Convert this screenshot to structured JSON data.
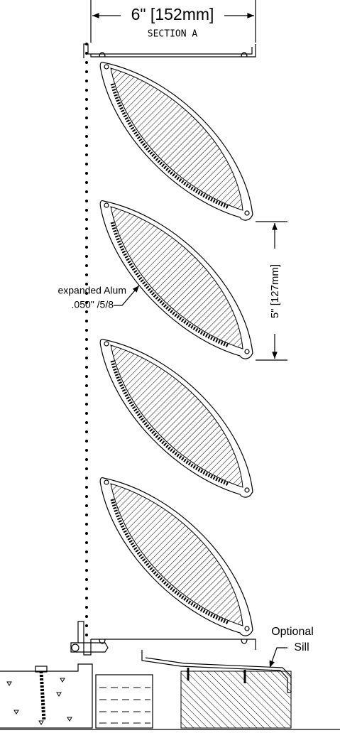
{
  "dimensions": {
    "width_label": "6\" [152mm]",
    "section": "SECTION A",
    "spacing_label": "5\" [127mm]"
  },
  "annotations": {
    "mesh": [
      "expanded Alum",
      ".050\" /5/8"
    ],
    "sill": [
      "Optional",
      "Sill"
    ]
  }
}
